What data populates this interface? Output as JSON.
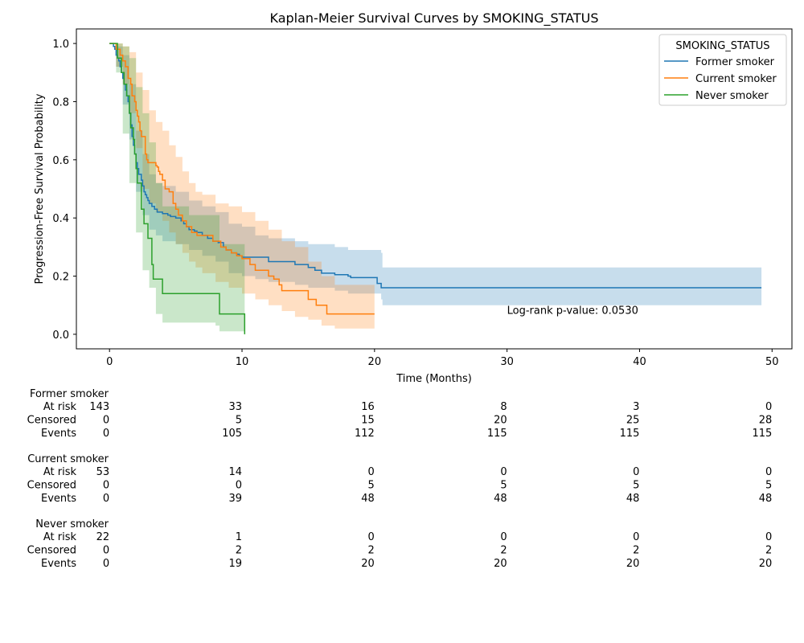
{
  "chart_data": {
    "type": "line",
    "title": "Kaplan-Meier Survival Curves by SMOKING_STATUS",
    "xlabel": "Time (Months)",
    "ylabel": "Progression-Free Survival Probability",
    "xlim": [
      -2.5,
      51.5
    ],
    "ylim": [
      -0.05,
      1.05
    ],
    "xticks": [
      0,
      10,
      20,
      30,
      40,
      50
    ],
    "yticks": [
      0.0,
      0.2,
      0.4,
      0.6,
      0.8,
      1.0
    ],
    "xtick_labels": [
      "0",
      "10",
      "20",
      "30",
      "40",
      "50"
    ],
    "ytick_labels": [
      "0.0",
      "0.2",
      "0.4",
      "0.6",
      "0.8",
      "1.0"
    ],
    "grid": false,
    "legend": {
      "title": "SMOKING_STATUS",
      "placement": "top-right",
      "entries": [
        "Former smoker",
        "Current smoker",
        "Never smoker"
      ]
    },
    "annotation": "Log-rank p-value: 0.0530",
    "annotation_at": [
      30,
      0.07
    ],
    "series": [
      {
        "name": "Former smoker",
        "color": "#1f77b4",
        "steps": [
          [
            0,
            1.0
          ],
          [
            0.3,
            0.99
          ],
          [
            0.4,
            0.98
          ],
          [
            0.5,
            0.96
          ],
          [
            0.6,
            0.95
          ],
          [
            0.7,
            0.94
          ],
          [
            0.8,
            0.92
          ],
          [
            0.9,
            0.9
          ],
          [
            1.0,
            0.88
          ],
          [
            1.1,
            0.86
          ],
          [
            1.2,
            0.84
          ],
          [
            1.3,
            0.82
          ],
          [
            1.4,
            0.8
          ],
          [
            1.5,
            0.76
          ],
          [
            1.6,
            0.72
          ],
          [
            1.7,
            0.68
          ],
          [
            1.8,
            0.65
          ],
          [
            1.9,
            0.62
          ],
          [
            2.0,
            0.59
          ],
          [
            2.1,
            0.57
          ],
          [
            2.2,
            0.55
          ],
          [
            2.4,
            0.53
          ],
          [
            2.5,
            0.51
          ],
          [
            2.6,
            0.49
          ],
          [
            2.7,
            0.48
          ],
          [
            2.8,
            0.47
          ],
          [
            2.9,
            0.46
          ],
          [
            3.0,
            0.45
          ],
          [
            3.2,
            0.44
          ],
          [
            3.4,
            0.43
          ],
          [
            3.6,
            0.42
          ],
          [
            4.0,
            0.415
          ],
          [
            4.4,
            0.41
          ],
          [
            4.6,
            0.405
          ],
          [
            5.0,
            0.4
          ],
          [
            5.4,
            0.39
          ],
          [
            5.6,
            0.38
          ],
          [
            5.8,
            0.37
          ],
          [
            6.0,
            0.36
          ],
          [
            6.4,
            0.355
          ],
          [
            6.6,
            0.35
          ],
          [
            7.0,
            0.34
          ],
          [
            7.4,
            0.33
          ],
          [
            7.8,
            0.32
          ],
          [
            8.2,
            0.315
          ],
          [
            8.6,
            0.3
          ],
          [
            8.8,
            0.29
          ],
          [
            9.2,
            0.28
          ],
          [
            9.6,
            0.275
          ],
          [
            9.8,
            0.27
          ],
          [
            10.0,
            0.265
          ],
          [
            12.0,
            0.25
          ],
          [
            14.0,
            0.24
          ],
          [
            15.0,
            0.23
          ],
          [
            15.5,
            0.22
          ],
          [
            16.0,
            0.21
          ],
          [
            17.0,
            0.205
          ],
          [
            18.0,
            0.2
          ],
          [
            18.2,
            0.195
          ],
          [
            20.2,
            0.175
          ],
          [
            20.5,
            0.16
          ],
          [
            49.2,
            0.16
          ]
        ],
        "ci_upper": [
          [
            0,
            1.0
          ],
          [
            0.5,
            0.99
          ],
          [
            1.0,
            0.96
          ],
          [
            1.5,
            0.86
          ],
          [
            2.0,
            0.7
          ],
          [
            2.5,
            0.62
          ],
          [
            3.0,
            0.55
          ],
          [
            3.5,
            0.52
          ],
          [
            4.0,
            0.51
          ],
          [
            5.0,
            0.49
          ],
          [
            6.0,
            0.46
          ],
          [
            7.0,
            0.44
          ],
          [
            8.0,
            0.42
          ],
          [
            9.0,
            0.38
          ],
          [
            10.0,
            0.37
          ],
          [
            11.0,
            0.34
          ],
          [
            12.0,
            0.33
          ],
          [
            14.0,
            0.32
          ],
          [
            15.0,
            0.31
          ],
          [
            17.0,
            0.3
          ],
          [
            18.0,
            0.29
          ],
          [
            20.5,
            0.28
          ],
          [
            20.6,
            0.23
          ],
          [
            49.2,
            0.23
          ]
        ],
        "ci_lower": [
          [
            0,
            1.0
          ],
          [
            0.5,
            0.92
          ],
          [
            1.0,
            0.79
          ],
          [
            1.5,
            0.67
          ],
          [
            2.0,
            0.49
          ],
          [
            2.5,
            0.41
          ],
          [
            3.0,
            0.36
          ],
          [
            3.5,
            0.34
          ],
          [
            4.0,
            0.32
          ],
          [
            5.0,
            0.31
          ],
          [
            6.0,
            0.29
          ],
          [
            7.0,
            0.27
          ],
          [
            8.0,
            0.25
          ],
          [
            9.0,
            0.21
          ],
          [
            10.0,
            0.2
          ],
          [
            11.0,
            0.19
          ],
          [
            12.0,
            0.18
          ],
          [
            14.0,
            0.17
          ],
          [
            15.0,
            0.16
          ],
          [
            17.0,
            0.15
          ],
          [
            18.0,
            0.14
          ],
          [
            20.5,
            0.12
          ],
          [
            20.6,
            0.1
          ],
          [
            49.2,
            0.1
          ]
        ]
      },
      {
        "name": "Current smoker",
        "color": "#ff7f0e",
        "steps": [
          [
            0,
            1.0
          ],
          [
            0.5,
            0.98
          ],
          [
            0.8,
            0.96
          ],
          [
            1.0,
            0.94
          ],
          [
            1.2,
            0.92
          ],
          [
            1.4,
            0.88
          ],
          [
            1.6,
            0.86
          ],
          [
            1.7,
            0.82
          ],
          [
            1.9,
            0.8
          ],
          [
            2.0,
            0.77
          ],
          [
            2.1,
            0.75
          ],
          [
            2.2,
            0.73
          ],
          [
            2.3,
            0.7
          ],
          [
            2.4,
            0.68
          ],
          [
            2.7,
            0.62
          ],
          [
            2.8,
            0.6
          ],
          [
            2.9,
            0.59
          ],
          [
            3.5,
            0.58
          ],
          [
            3.6,
            0.575
          ],
          [
            3.7,
            0.56
          ],
          [
            3.8,
            0.55
          ],
          [
            4.0,
            0.53
          ],
          [
            4.2,
            0.5
          ],
          [
            4.5,
            0.49
          ],
          [
            4.8,
            0.45
          ],
          [
            5.0,
            0.43
          ],
          [
            5.2,
            0.41
          ],
          [
            5.5,
            0.39
          ],
          [
            5.8,
            0.37
          ],
          [
            6.2,
            0.35
          ],
          [
            6.6,
            0.34
          ],
          [
            7.2,
            0.34
          ],
          [
            7.8,
            0.32
          ],
          [
            8.4,
            0.3
          ],
          [
            8.8,
            0.29
          ],
          [
            9.2,
            0.28
          ],
          [
            9.6,
            0.27
          ],
          [
            10.0,
            0.26
          ],
          [
            10.6,
            0.24
          ],
          [
            11.0,
            0.22
          ],
          [
            12.0,
            0.2
          ],
          [
            12.4,
            0.19
          ],
          [
            12.8,
            0.17
          ],
          [
            13.0,
            0.15
          ],
          [
            15.0,
            0.12
          ],
          [
            15.6,
            0.1
          ],
          [
            16.4,
            0.07
          ],
          [
            20.0,
            0.07
          ]
        ],
        "ci_upper": [
          [
            0,
            1.0
          ],
          [
            0.5,
            1.0
          ],
          [
            1.0,
            0.99
          ],
          [
            1.5,
            0.97
          ],
          [
            2.0,
            0.9
          ],
          [
            2.5,
            0.84
          ],
          [
            3.0,
            0.77
          ],
          [
            3.5,
            0.73
          ],
          [
            4.0,
            0.7
          ],
          [
            4.5,
            0.65
          ],
          [
            5.0,
            0.61
          ],
          [
            5.5,
            0.56
          ],
          [
            6.0,
            0.52
          ],
          [
            6.5,
            0.49
          ],
          [
            7.0,
            0.48
          ],
          [
            8.0,
            0.45
          ],
          [
            9.0,
            0.44
          ],
          [
            10.0,
            0.42
          ],
          [
            11.0,
            0.39
          ],
          [
            12.0,
            0.36
          ],
          [
            13.0,
            0.32
          ],
          [
            14.0,
            0.3
          ],
          [
            15.0,
            0.25
          ],
          [
            16.0,
            0.2
          ],
          [
            17.0,
            0.17
          ],
          [
            18.0,
            0.17
          ],
          [
            20.0,
            0.17
          ]
        ],
        "ci_lower": [
          [
            0,
            1.0
          ],
          [
            0.5,
            0.92
          ],
          [
            1.0,
            0.86
          ],
          [
            1.5,
            0.76
          ],
          [
            2.0,
            0.64
          ],
          [
            2.5,
            0.5
          ],
          [
            3.0,
            0.45
          ],
          [
            3.5,
            0.42
          ],
          [
            4.0,
            0.39
          ],
          [
            4.5,
            0.35
          ],
          [
            5.0,
            0.31
          ],
          [
            5.5,
            0.28
          ],
          [
            6.0,
            0.25
          ],
          [
            6.5,
            0.23
          ],
          [
            7.0,
            0.21
          ],
          [
            8.0,
            0.18
          ],
          [
            9.0,
            0.16
          ],
          [
            10.0,
            0.14
          ],
          [
            11.0,
            0.12
          ],
          [
            12.0,
            0.1
          ],
          [
            13.0,
            0.08
          ],
          [
            14.0,
            0.06
          ],
          [
            15.0,
            0.05
          ],
          [
            16.0,
            0.03
          ],
          [
            17.0,
            0.02
          ],
          [
            20.0,
            0.02
          ]
        ]
      },
      {
        "name": "Never smoker",
        "color": "#2ca02c",
        "steps": [
          [
            0,
            1.0
          ],
          [
            0.6,
            0.95
          ],
          [
            0.9,
            0.9
          ],
          [
            1.1,
            0.86
          ],
          [
            1.3,
            0.82
          ],
          [
            1.5,
            0.76
          ],
          [
            1.6,
            0.71
          ],
          [
            1.8,
            0.67
          ],
          [
            1.9,
            0.62
          ],
          [
            2.0,
            0.57
          ],
          [
            2.1,
            0.52
          ],
          [
            2.4,
            0.43
          ],
          [
            2.6,
            0.38
          ],
          [
            2.9,
            0.33
          ],
          [
            3.2,
            0.24
          ],
          [
            3.3,
            0.19
          ],
          [
            4.0,
            0.14
          ],
          [
            8.3,
            0.07
          ],
          [
            10.2,
            0.0
          ]
        ],
        "ci_upper": [
          [
            0,
            1.0
          ],
          [
            0.5,
            1.0
          ],
          [
            1.0,
            0.99
          ],
          [
            1.5,
            0.95
          ],
          [
            2.0,
            0.85
          ],
          [
            2.5,
            0.76
          ],
          [
            3.0,
            0.66
          ],
          [
            3.5,
            0.52
          ],
          [
            4.0,
            0.44
          ],
          [
            6.0,
            0.41
          ],
          [
            8.0,
            0.41
          ],
          [
            8.3,
            0.31
          ],
          [
            10.2,
            0.31
          ]
        ],
        "ci_lower": [
          [
            0,
            1.0
          ],
          [
            0.5,
            0.9
          ],
          [
            1.0,
            0.69
          ],
          [
            1.5,
            0.52
          ],
          [
            2.0,
            0.35
          ],
          [
            2.5,
            0.22
          ],
          [
            3.0,
            0.16
          ],
          [
            3.5,
            0.07
          ],
          [
            4.0,
            0.04
          ],
          [
            6.0,
            0.04
          ],
          [
            8.0,
            0.03
          ],
          [
            8.3,
            0.01
          ],
          [
            10.2,
            0.01
          ]
        ]
      }
    ]
  },
  "risk_table": {
    "time_points": [
      0,
      10,
      20,
      30,
      40,
      50
    ],
    "row_labels": [
      "At risk",
      "Censored",
      "Events"
    ],
    "groups": [
      {
        "name": "Former smoker",
        "rows": [
          [
            "143",
            "33",
            "16",
            "8",
            "3",
            "0"
          ],
          [
            "0",
            "5",
            "15",
            "20",
            "25",
            "28"
          ],
          [
            "0",
            "105",
            "112",
            "115",
            "115",
            "115"
          ]
        ]
      },
      {
        "name": "Current smoker",
        "rows": [
          [
            "53",
            "14",
            "0",
            "0",
            "0",
            "0"
          ],
          [
            "0",
            "0",
            "5",
            "5",
            "5",
            "5"
          ],
          [
            "0",
            "39",
            "48",
            "48",
            "48",
            "48"
          ]
        ]
      },
      {
        "name": "Never smoker",
        "rows": [
          [
            "22",
            "1",
            "0",
            "0",
            "0",
            "0"
          ],
          [
            "0",
            "2",
            "2",
            "2",
            "2",
            "2"
          ],
          [
            "0",
            "19",
            "20",
            "20",
            "20",
            "20"
          ]
        ]
      }
    ]
  }
}
